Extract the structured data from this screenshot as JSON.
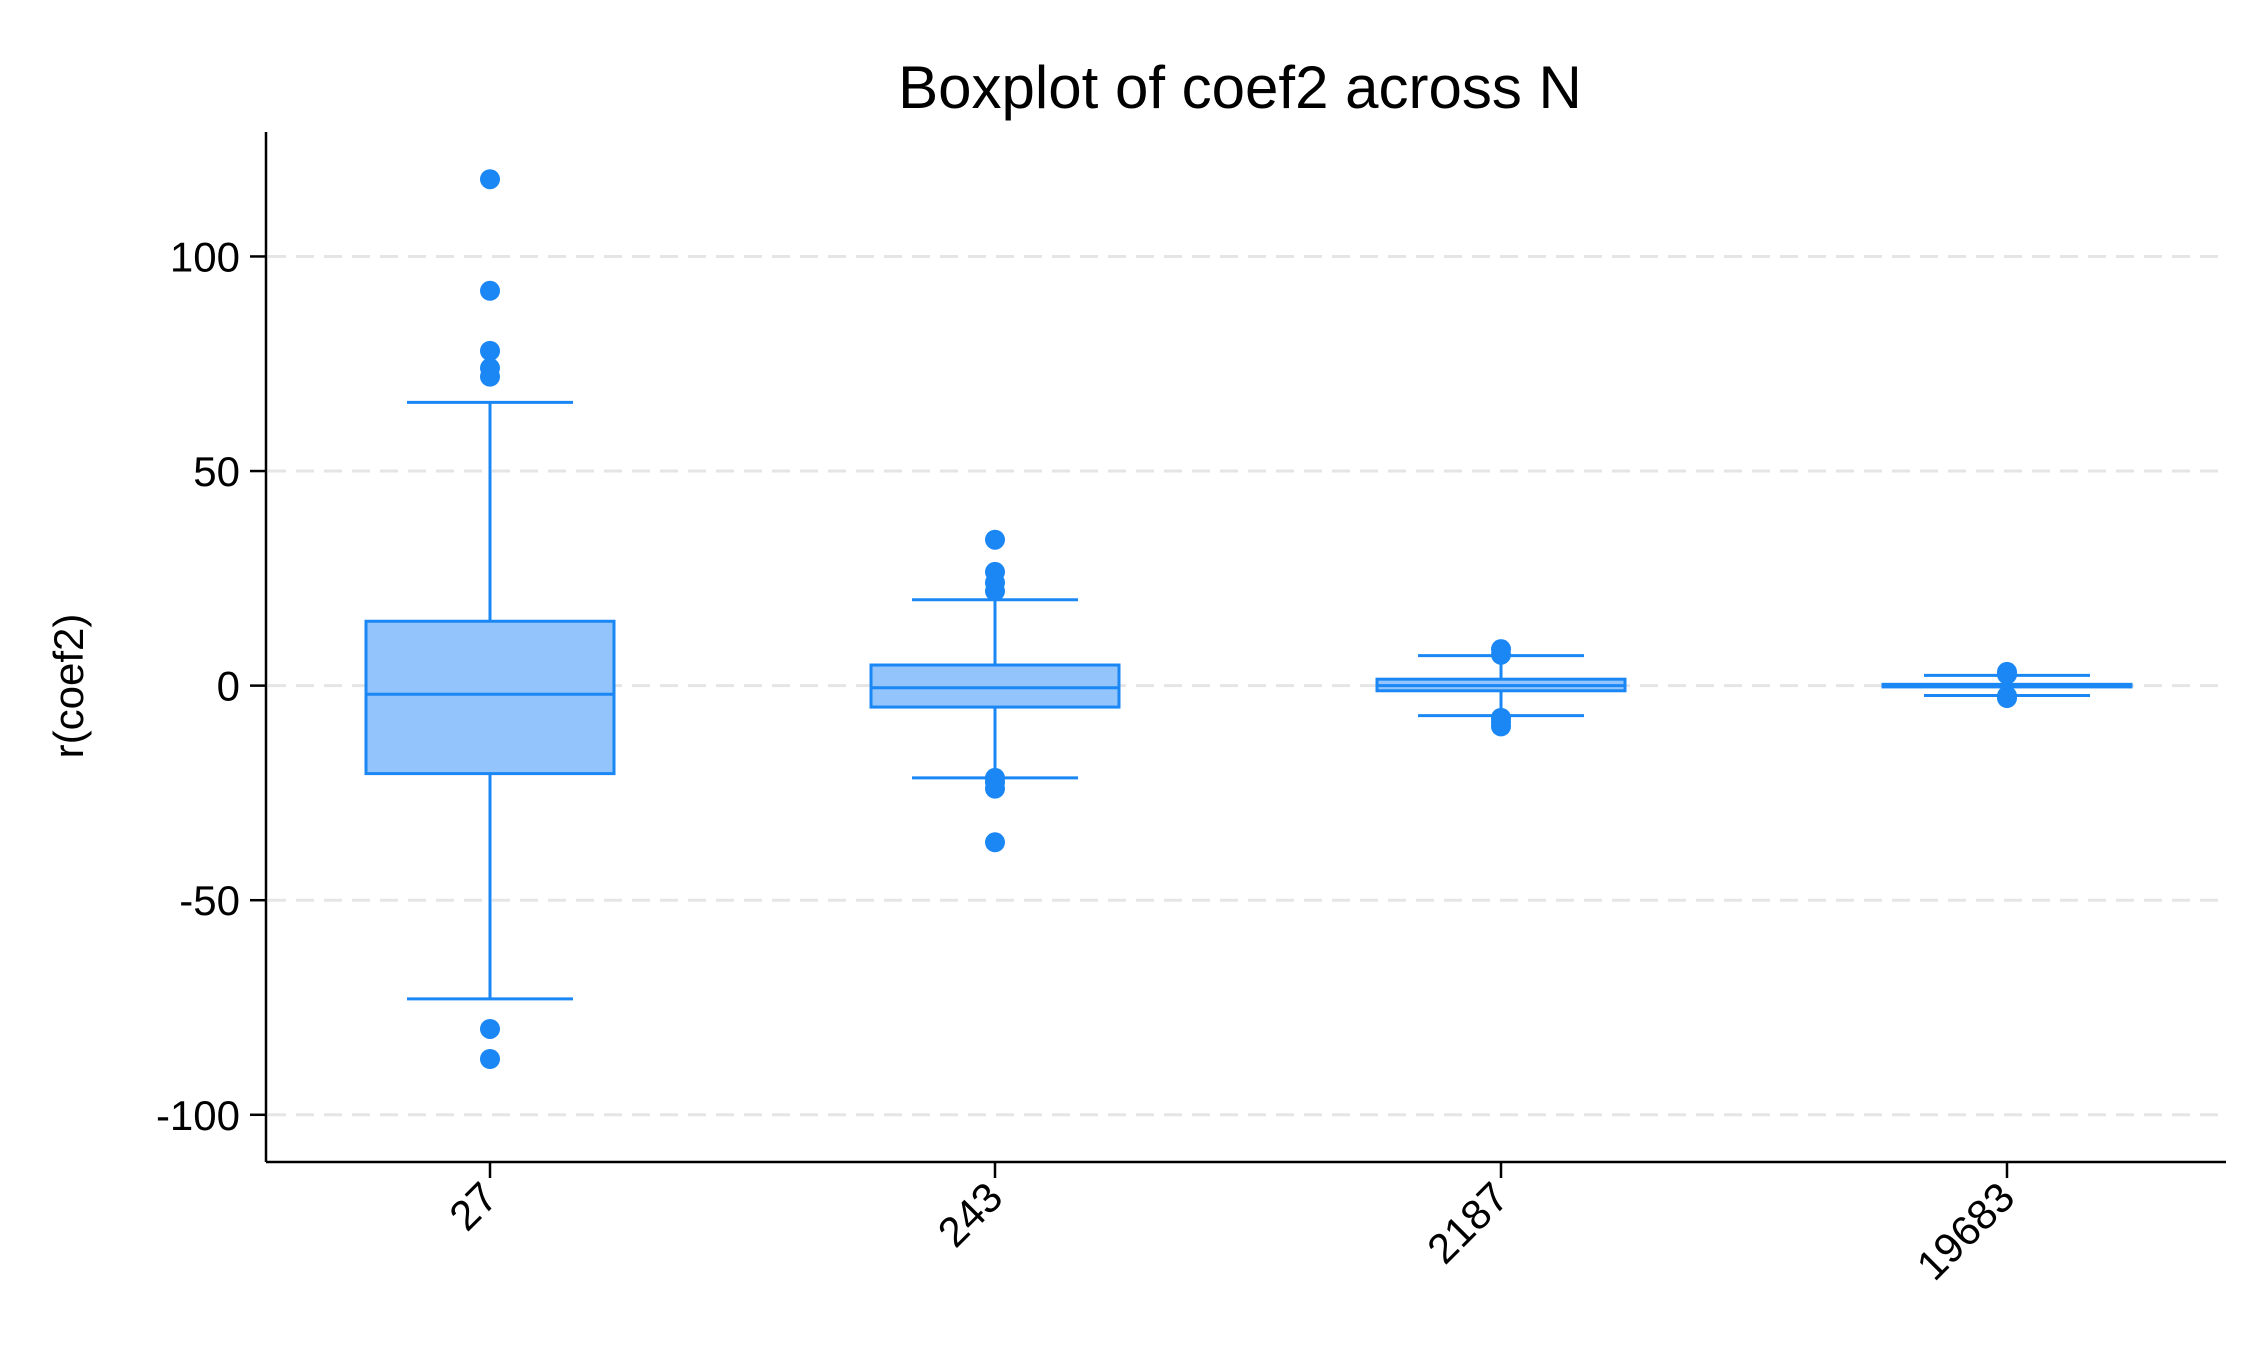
{
  "chart_data": {
    "type": "box",
    "title": "Boxplot of coef2 across N",
    "ylabel": "r(coef2)",
    "xlabel": "",
    "ylim": [
      -111,
      129
    ],
    "yticks": [
      100,
      50,
      0,
      -50,
      -100
    ],
    "grid": true,
    "categories": [
      "27",
      "243",
      "2187",
      "19683"
    ],
    "boxes": [
      {
        "q1": -20.5,
        "median": -2,
        "q3": 15,
        "whisker_low": -73,
        "whisker_high": 66,
        "outliers": [
          118,
          92,
          78,
          74,
          72,
          -80,
          -87
        ]
      },
      {
        "q1": -5,
        "median": -0.5,
        "q3": 4.8,
        "whisker_low": -21.5,
        "whisker_high": 20,
        "outliers": [
          34,
          26.5,
          24,
          22,
          -21.5,
          -22.5,
          -24,
          -36.5
        ]
      },
      {
        "q1": -1.2,
        "median": 0,
        "q3": 1.5,
        "whisker_low": -7,
        "whisker_high": 7,
        "outliers": [
          8.5,
          7.2,
          -7.5,
          -8.5,
          -9.5
        ]
      },
      {
        "q1": -0.3,
        "median": 0,
        "q3": 0.3,
        "whisker_low": -2.3,
        "whisker_high": 2.4,
        "outliers": [
          3.2,
          2.6,
          -2.4,
          -2.9
        ]
      }
    ],
    "colors": {
      "box_fill": "#93c4fb",
      "stroke": "#1a87f5",
      "outlier": "#1a87f5",
      "grid": "#e5e5e5",
      "axis": "#000000"
    }
  }
}
